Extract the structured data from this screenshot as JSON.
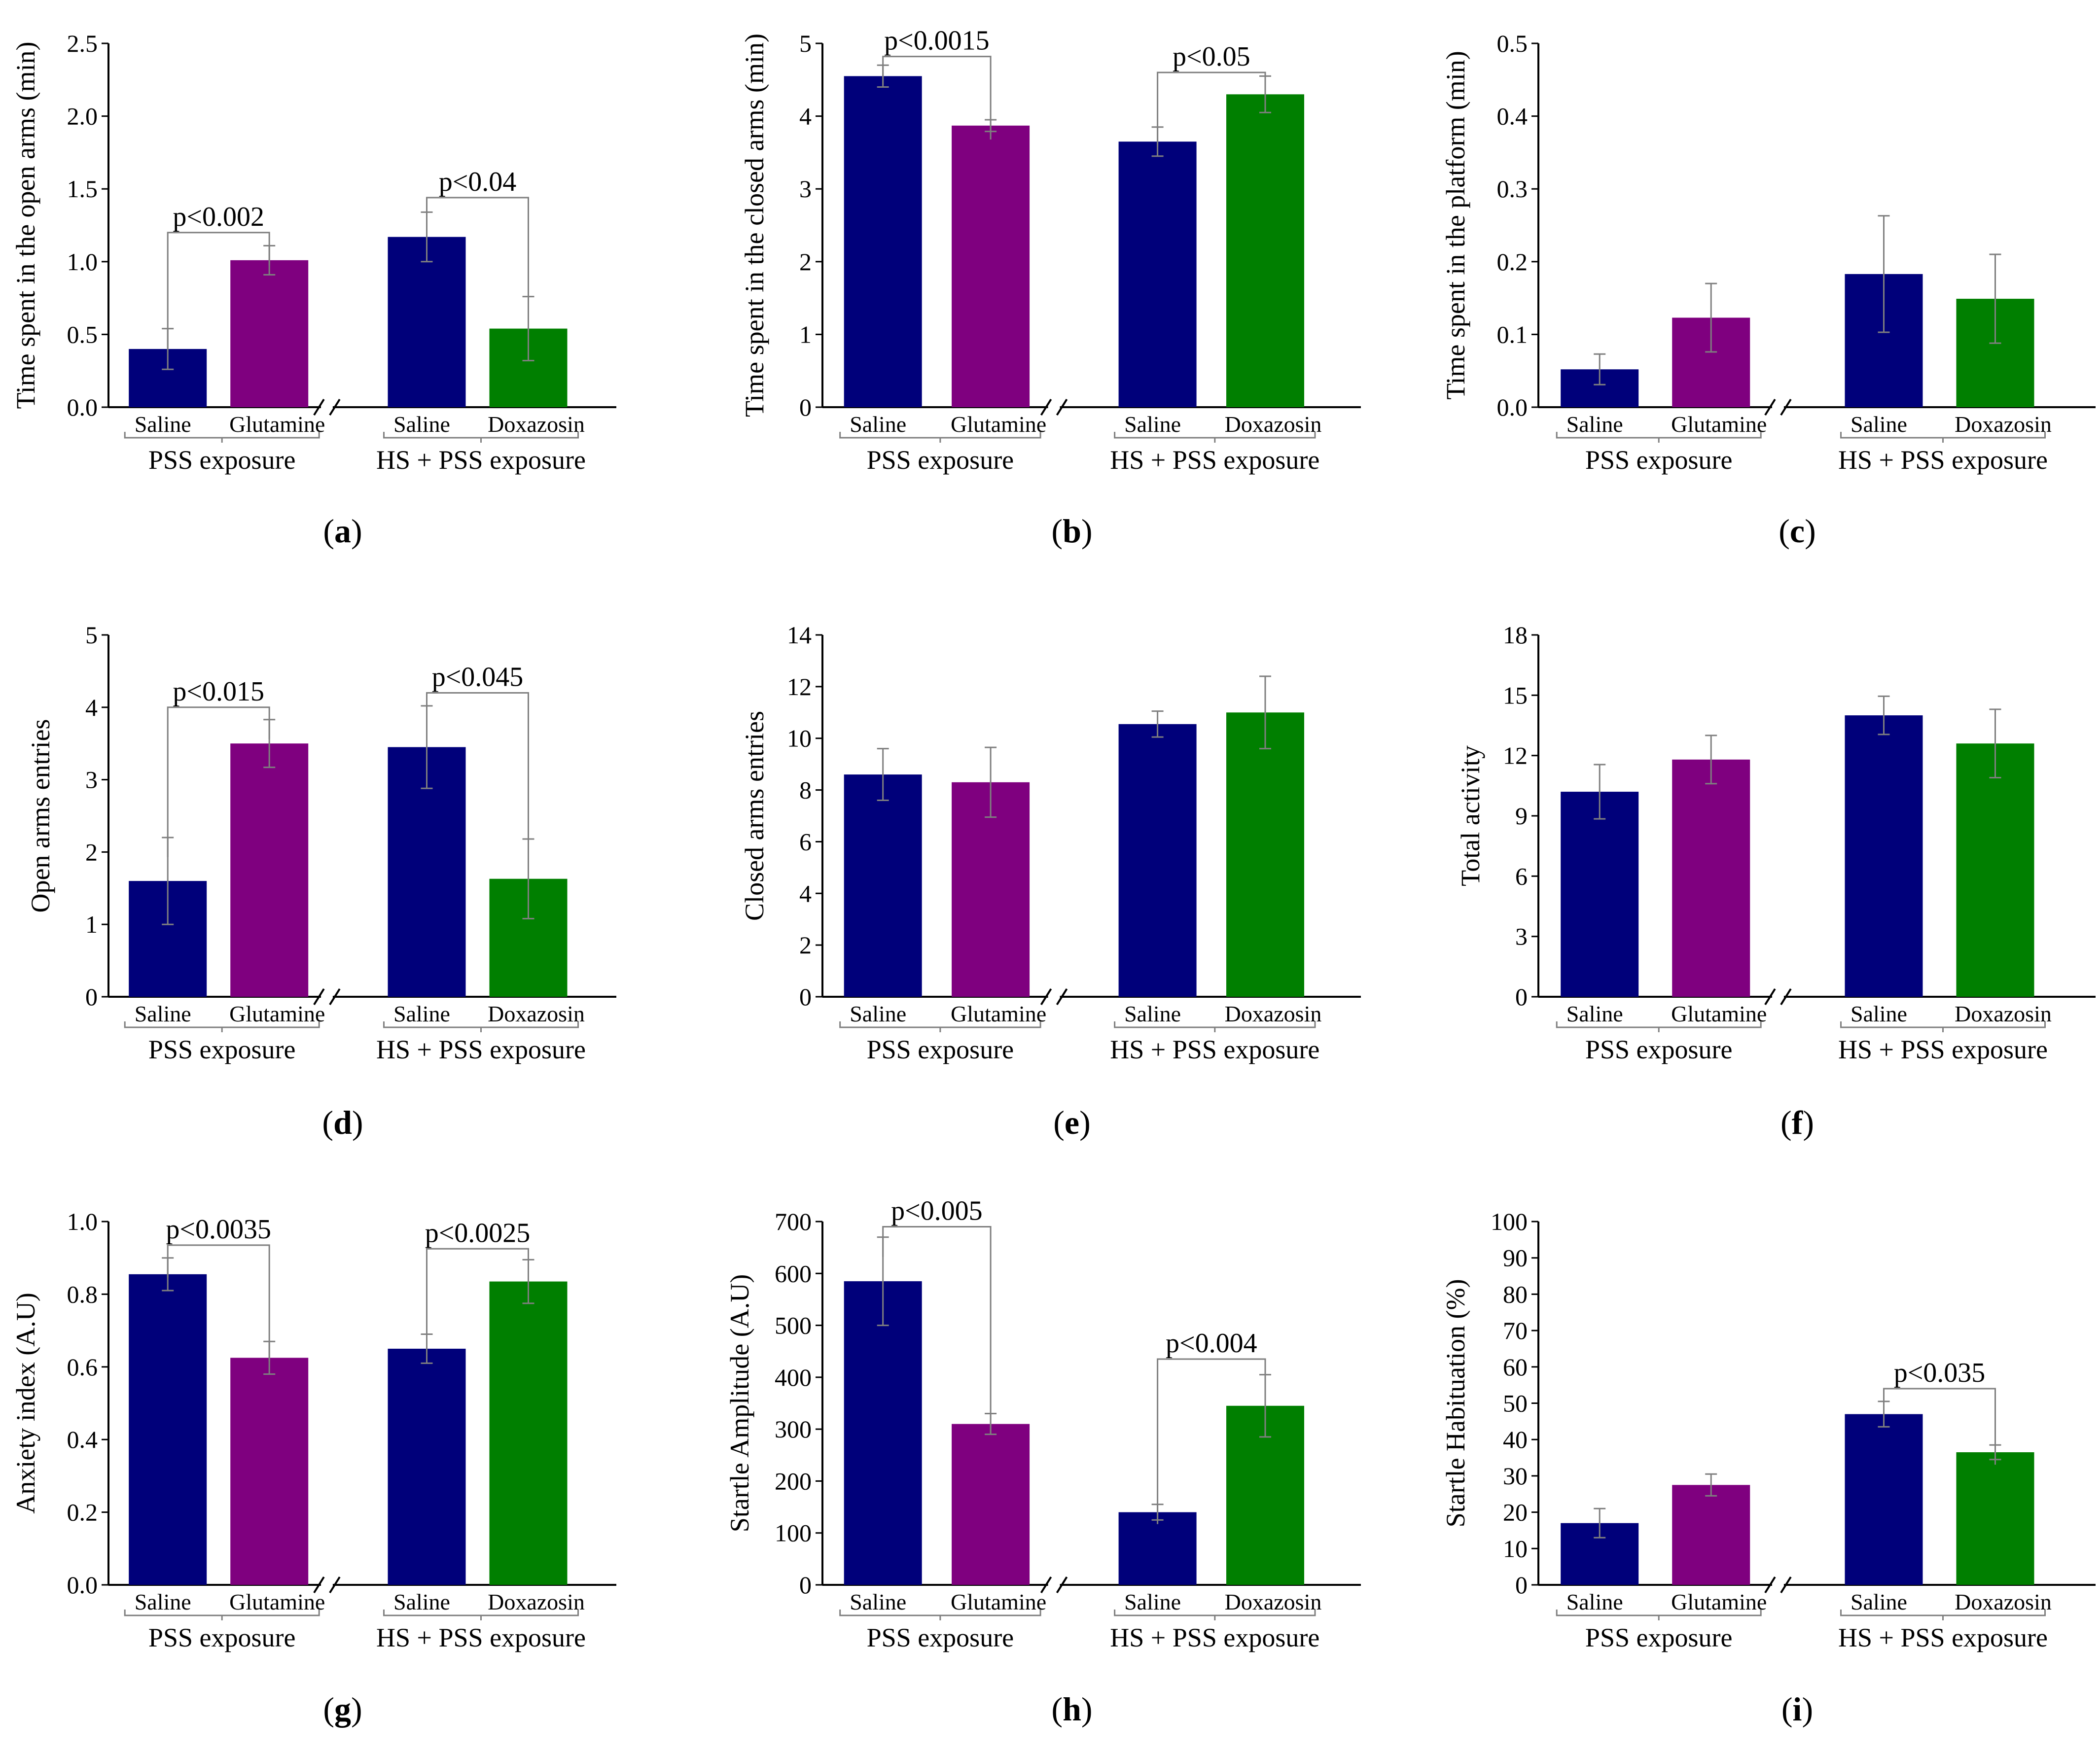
{
  "colors": {
    "saline": "#00007A",
    "glutamine": "#7F007F",
    "doxazosin": "#007F00",
    "axis": "#000000",
    "bracket": "#7F7F7F"
  },
  "chart_data": [
    {
      "id": "a",
      "type": "bar",
      "panel_label": "a",
      "ylabel": "Time spent in the open arms (min)",
      "ylim": [
        0,
        2.5
      ],
      "yticks": [
        "0.0",
        "0.5",
        "1.0",
        "1.5",
        "2.0",
        "2.5"
      ],
      "groups": [
        {
          "label": "PSS exposure",
          "bars": [
            {
              "label": "Saline",
              "value": 0.4,
              "err": 0.14,
              "color": "saline"
            },
            {
              "label": "Glutamine",
              "value": 1.01,
              "err": 0.1,
              "color": "glutamine"
            }
          ]
        },
        {
          "label": "HS + PSS exposure",
          "bars": [
            {
              "label": "Saline",
              "value": 1.17,
              "err": 0.17,
              "color": "saline"
            },
            {
              "label": "Doxazosin",
              "value": 0.54,
              "err": 0.22,
              "color": "doxazosin"
            }
          ]
        }
      ],
      "significance": [
        {
          "group": 0,
          "text": "p<0.002",
          "y": 1.2
        },
        {
          "group": 1,
          "text": "p<0.04",
          "y": 1.44
        }
      ]
    },
    {
      "id": "b",
      "type": "bar",
      "panel_label": "b",
      "ylabel": "Time spent in the closed arms (min)",
      "ylim": [
        0,
        5
      ],
      "yticks": [
        "0",
        "1",
        "2",
        "3",
        "4",
        "5"
      ],
      "groups": [
        {
          "label": "PSS exposure",
          "bars": [
            {
              "label": "Saline",
              "value": 4.55,
              "err": 0.15,
              "color": "saline"
            },
            {
              "label": "Glutamine",
              "value": 3.87,
              "err": 0.08,
              "color": "glutamine"
            }
          ]
        },
        {
          "label": "HS + PSS exposure",
          "bars": [
            {
              "label": "Saline",
              "value": 3.65,
              "err": 0.2,
              "color": "saline"
            },
            {
              "label": "Doxazosin",
              "value": 4.3,
              "err": 0.25,
              "color": "doxazosin"
            }
          ]
        }
      ],
      "significance": [
        {
          "group": 0,
          "text": "p<0.0015",
          "y": 4.82
        },
        {
          "group": 1,
          "text": "p<0.05",
          "y": 4.6
        }
      ]
    },
    {
      "id": "c",
      "type": "bar",
      "panel_label": "c",
      "ylabel": "Time spent in the platform (min)",
      "ylim": [
        0,
        0.5
      ],
      "yticks": [
        "0.0",
        "0.1",
        "0.2",
        "0.3",
        "0.4",
        "0.5"
      ],
      "groups": [
        {
          "label": "PSS exposure",
          "bars": [
            {
              "label": "Saline",
              "value": 0.052,
              "err": 0.021,
              "color": "saline"
            },
            {
              "label": "Glutamine",
              "value": 0.123,
              "err": 0.047,
              "color": "glutamine"
            }
          ]
        },
        {
          "label": "HS + PSS exposure",
          "bars": [
            {
              "label": "Saline",
              "value": 0.183,
              "err": 0.08,
              "color": "saline"
            },
            {
              "label": "Doxazosin",
              "value": 0.149,
              "err": 0.061,
              "color": "doxazosin"
            }
          ]
        }
      ],
      "significance": []
    },
    {
      "id": "d",
      "type": "bar",
      "panel_label": "d",
      "ylabel": "Open arms entries",
      "ylim": [
        0,
        5
      ],
      "yticks": [
        "0",
        "1",
        "2",
        "3",
        "4",
        "5"
      ],
      "groups": [
        {
          "label": "PSS exposure",
          "bars": [
            {
              "label": "Saline",
              "value": 1.6,
              "err": 0.6,
              "color": "saline"
            },
            {
              "label": "Glutamine",
              "value": 3.5,
              "err": 0.33,
              "color": "glutamine"
            }
          ]
        },
        {
          "label": "HS + PSS exposure",
          "bars": [
            {
              "label": "Saline",
              "value": 3.45,
              "err": 0.57,
              "color": "saline"
            },
            {
              "label": "Doxazosin",
              "value": 1.63,
              "err": 0.55,
              "color": "doxazosin"
            }
          ]
        }
      ],
      "significance": [
        {
          "group": 0,
          "text": "p<0.015",
          "y": 4.0
        },
        {
          "group": 1,
          "text": "p<0.045",
          "y": 4.2
        }
      ]
    },
    {
      "id": "e",
      "type": "bar",
      "panel_label": "e",
      "ylabel": "Closed arms entries",
      "ylim": [
        0,
        14
      ],
      "yticks": [
        "0",
        "2",
        "4",
        "6",
        "8",
        "10",
        "12",
        "14"
      ],
      "groups": [
        {
          "label": "PSS exposure",
          "bars": [
            {
              "label": "Saline",
              "value": 8.6,
              "err": 1.0,
              "color": "saline"
            },
            {
              "label": "Glutamine",
              "value": 8.3,
              "err": 1.35,
              "color": "glutamine"
            }
          ]
        },
        {
          "label": "HS + PSS exposure",
          "bars": [
            {
              "label": "Saline",
              "value": 10.55,
              "err": 0.5,
              "color": "saline"
            },
            {
              "label": "Doxazosin",
              "value": 11.0,
              "err": 1.4,
              "color": "doxazosin"
            }
          ]
        }
      ],
      "significance": []
    },
    {
      "id": "f",
      "type": "bar",
      "panel_label": "f",
      "ylabel": "Total activity",
      "ylim": [
        0,
        18
      ],
      "yticks": [
        "0",
        "3",
        "6",
        "9",
        "12",
        "15",
        "18"
      ],
      "groups": [
        {
          "label": "PSS exposure",
          "bars": [
            {
              "label": "Saline",
              "value": 10.2,
              "err": 1.35,
              "color": "saline"
            },
            {
              "label": "Glutamine",
              "value": 11.8,
              "err": 1.2,
              "color": "glutamine"
            }
          ]
        },
        {
          "label": "HS + PSS exposure",
          "bars": [
            {
              "label": "Saline",
              "value": 14.0,
              "err": 0.95,
              "color": "saline"
            },
            {
              "label": "Doxazosin",
              "value": 12.6,
              "err": 1.7,
              "color": "doxazosin"
            }
          ]
        }
      ],
      "significance": []
    },
    {
      "id": "g",
      "type": "bar",
      "panel_label": "g",
      "ylabel": "Anxiety index (A.U)",
      "ylim": [
        0,
        1.0
      ],
      "yticks": [
        "0.0",
        "0.2",
        "0.4",
        "0.6",
        "0.8",
        "1.0"
      ],
      "groups": [
        {
          "label": "PSS exposure",
          "bars": [
            {
              "label": "Saline",
              "value": 0.855,
              "err": 0.045,
              "color": "saline"
            },
            {
              "label": "Glutamine",
              "value": 0.625,
              "err": 0.045,
              "color": "glutamine"
            }
          ]
        },
        {
          "label": "HS + PSS exposure",
          "bars": [
            {
              "label": "Saline",
              "value": 0.65,
              "err": 0.04,
              "color": "saline"
            },
            {
              "label": "Doxazosin",
              "value": 0.835,
              "err": 0.06,
              "color": "doxazosin"
            }
          ]
        }
      ],
      "significance": [
        {
          "group": 0,
          "text": "p<0.0035",
          "y": 0.935
        },
        {
          "group": 1,
          "text": "p<0.0025",
          "y": 0.925
        }
      ]
    },
    {
      "id": "h",
      "type": "bar",
      "panel_label": "h",
      "ylabel": "Startle Amplitude (A.U)",
      "ylim": [
        0,
        700
      ],
      "yticks": [
        "0",
        "100",
        "200",
        "300",
        "400",
        "500",
        "600",
        "700"
      ],
      "groups": [
        {
          "label": "PSS exposure",
          "bars": [
            {
              "label": "Saline",
              "value": 585,
              "err": 85,
              "color": "saline"
            },
            {
              "label": "Glutamine",
              "value": 310,
              "err": 20,
              "color": "glutamine"
            }
          ]
        },
        {
          "label": "HS + PSS exposure",
          "bars": [
            {
              "label": "Saline",
              "value": 140,
              "err": 15,
              "color": "saline"
            },
            {
              "label": "Doxazosin",
              "value": 345,
              "err": 60,
              "color": "doxazosin"
            }
          ]
        }
      ],
      "significance": [
        {
          "group": 0,
          "text": "p<0.005",
          "y": 690
        },
        {
          "group": 1,
          "text": "p<0.004",
          "y": 435
        }
      ]
    },
    {
      "id": "i",
      "type": "bar",
      "panel_label": "i",
      "ylabel": "Startle Habituation (%)",
      "ylim": [
        0,
        100
      ],
      "yticks": [
        "0",
        "10",
        "20",
        "30",
        "40",
        "50",
        "60",
        "70",
        "80",
        "90",
        "100"
      ],
      "groups": [
        {
          "label": "PSS exposure",
          "bars": [
            {
              "label": "Saline",
              "value": 17,
              "err": 4,
              "color": "saline"
            },
            {
              "label": "Glutamine",
              "value": 27.5,
              "err": 3,
              "color": "glutamine"
            }
          ]
        },
        {
          "label": "HS + PSS exposure",
          "bars": [
            {
              "label": "Saline",
              "value": 47,
              "err": 3.5,
              "color": "saline"
            },
            {
              "label": "Doxazosin",
              "value": 36.5,
              "err": 2,
              "color": "doxazosin"
            }
          ]
        }
      ],
      "significance": [
        {
          "group": 1,
          "text": "p<0.035",
          "y": 54
        }
      ]
    }
  ]
}
